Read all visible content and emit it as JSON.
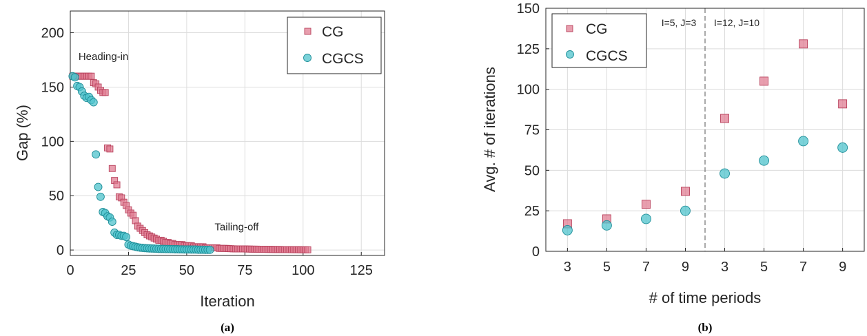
{
  "colors": {
    "cg": "#e07d93",
    "cg_edge": "#b8405b",
    "cgcs": "#4fc3cc",
    "cgcs_edge": "#1e8e98"
  },
  "captions": {
    "a": "(a)",
    "b": "(b)"
  },
  "chart_data": [
    {
      "type": "scatter",
      "xlabel": "Iteration",
      "ylabel": "Gap (%)",
      "xlim": [
        0,
        135
      ],
      "ylim": [
        -5,
        220
      ],
      "xticks": [
        0,
        25,
        50,
        75,
        100,
        125
      ],
      "yticks": [
        0,
        50,
        100,
        150,
        200
      ],
      "grid": true,
      "legend_position": "top-right",
      "annotations": [
        {
          "text": "Heading-in",
          "x": 3.5,
          "y": 175
        },
        {
          "text": "Tailing-off",
          "x": 62,
          "y": 18
        }
      ],
      "series": [
        {
          "name": "CG",
          "marker": "square",
          "x": [
            1,
            2,
            3,
            4,
            5,
            6,
            7,
            8,
            9,
            10,
            11,
            12,
            13,
            14,
            15,
            16,
            17,
            18,
            19,
            20,
            21,
            22,
            23,
            24,
            25,
            26,
            27,
            28,
            29,
            30,
            31,
            32,
            33,
            34,
            35,
            36,
            37,
            38,
            39,
            40,
            41,
            42,
            43,
            44,
            45,
            46,
            47,
            48,
            49,
            50,
            51,
            52,
            53,
            54,
            55,
            56,
            57,
            58,
            59,
            60,
            61,
            62,
            63,
            64,
            65,
            66,
            67,
            68,
            69,
            70,
            71,
            72,
            73,
            74,
            75,
            76,
            77,
            78,
            79,
            80,
            81,
            82,
            83,
            84,
            85,
            86,
            87,
            88,
            89,
            90,
            91,
            92,
            93,
            94,
            95,
            96,
            97,
            98,
            99,
            100,
            101,
            102
          ],
          "y": [
            160,
            160,
            160,
            160,
            160,
            160,
            160,
            160,
            160,
            154,
            153,
            150,
            147,
            145,
            145,
            94,
            93,
            75,
            64,
            60,
            49,
            48,
            44,
            41,
            37,
            34,
            32,
            27,
            22,
            20,
            18,
            16,
            14,
            13,
            12,
            11,
            10,
            9,
            9,
            8,
            7,
            7,
            6,
            6,
            5,
            5,
            5,
            5,
            4,
            4,
            4,
            4,
            3,
            3,
            3,
            3,
            3,
            2,
            2,
            2,
            2,
            2,
            2,
            1.5,
            1.5,
            1.5,
            1.5,
            1.3,
            1.2,
            1.1,
            1,
            1,
            1,
            1,
            1,
            0.9,
            0.9,
            0.8,
            0.8,
            0.8,
            0.7,
            0.7,
            0.7,
            0.6,
            0.6,
            0.6,
            0.5,
            0.5,
            0.5,
            0.5,
            0.4,
            0.4,
            0.4,
            0.4,
            0.3,
            0.3,
            0.3,
            0.3,
            0.2,
            0.2,
            0.2,
            0.2
          ]
        },
        {
          "name": "CGCS",
          "marker": "circle",
          "x": [
            1,
            2,
            3,
            4,
            5,
            6,
            7,
            8,
            9,
            10,
            11,
            12,
            13,
            14,
            15,
            16,
            17,
            18,
            19,
            20,
            21,
            22,
            23,
            24,
            25,
            26,
            27,
            28,
            29,
            30,
            31,
            32,
            33,
            34,
            35,
            36,
            37,
            38,
            39,
            40,
            41,
            42,
            43,
            44,
            45,
            46,
            47,
            48,
            49,
            50,
            51,
            52,
            53,
            54,
            55,
            56,
            57,
            58,
            59,
            60
          ],
          "y": [
            160,
            159,
            151,
            150,
            146,
            142,
            140,
            141,
            138,
            136,
            88,
            58,
            49,
            35,
            34,
            31,
            30,
            26,
            16,
            14,
            14,
            13,
            13,
            12,
            5,
            4,
            3.5,
            3,
            2.5,
            2.2,
            2,
            1.8,
            1.6,
            1.5,
            1.4,
            1.3,
            1.2,
            1.1,
            1,
            1,
            0.9,
            0.9,
            0.8,
            0.8,
            0.7,
            0.7,
            0.6,
            0.6,
            0.5,
            0.5,
            0.5,
            0.4,
            0.4,
            0.4,
            0.3,
            0.3,
            0.3,
            0.2,
            0.2,
            0.2
          ]
        }
      ]
    },
    {
      "type": "scatter",
      "xlabel": "# of time periods",
      "ylabel": "Avg. # of iterations",
      "categories": [
        "3",
        "5",
        "7",
        "9",
        "3",
        "5",
        "7",
        "9"
      ],
      "ylim": [
        0,
        150
      ],
      "yticks": [
        0,
        25,
        50,
        75,
        100,
        125,
        150
      ],
      "grid": true,
      "legend_position": "top-left",
      "regions": [
        {
          "label": "I=5, J=3",
          "from_index": 0,
          "to_index": 3
        },
        {
          "label": "I=12, J=10",
          "from_index": 4,
          "to_index": 7
        }
      ],
      "series": [
        {
          "name": "CG",
          "marker": "square",
          "values": [
            17,
            20,
            29,
            37,
            82,
            105,
            128,
            91
          ]
        },
        {
          "name": "CGCS",
          "marker": "circle",
          "values": [
            13,
            16,
            20,
            25,
            48,
            56,
            68,
            64
          ]
        }
      ]
    }
  ]
}
